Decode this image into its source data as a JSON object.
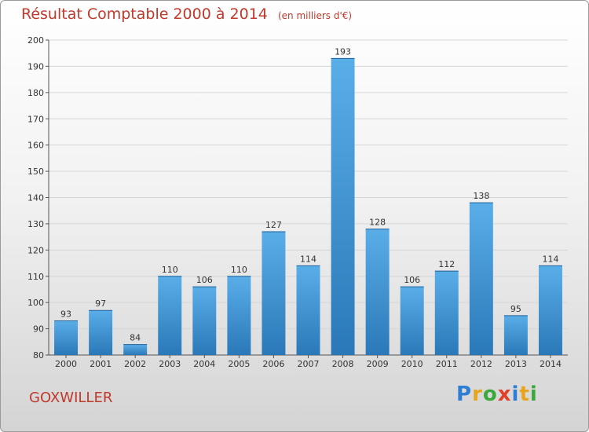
{
  "header": {
    "title": "Résultat Comptable 2000 à 2014",
    "subtitle": "(en milliers d'€)"
  },
  "commune": "GOXWILLER",
  "logo": {
    "letters": [
      "P",
      "r",
      "o",
      "x",
      "i",
      "t",
      "i"
    ]
  },
  "colors": {
    "bar_top": "#5aaee8",
    "bar_bottom": "#2a78b8",
    "title": "#c0392b"
  },
  "chart_data": {
    "type": "bar",
    "title": "Résultat Comptable 2000 à 2014",
    "xlabel": "",
    "ylabel": "",
    "ylim": [
      80,
      200
    ],
    "yticks": [
      80,
      90,
      100,
      110,
      120,
      130,
      140,
      150,
      160,
      170,
      180,
      190,
      200
    ],
    "categories": [
      "2000",
      "2001",
      "2002",
      "2003",
      "2004",
      "2005",
      "2006",
      "2007",
      "2008",
      "2009",
      "2010",
      "2011",
      "2012",
      "2013",
      "2014"
    ],
    "values": [
      93,
      97,
      84,
      110,
      106,
      110,
      127,
      114,
      193,
      128,
      106,
      112,
      138,
      95,
      114
    ]
  }
}
